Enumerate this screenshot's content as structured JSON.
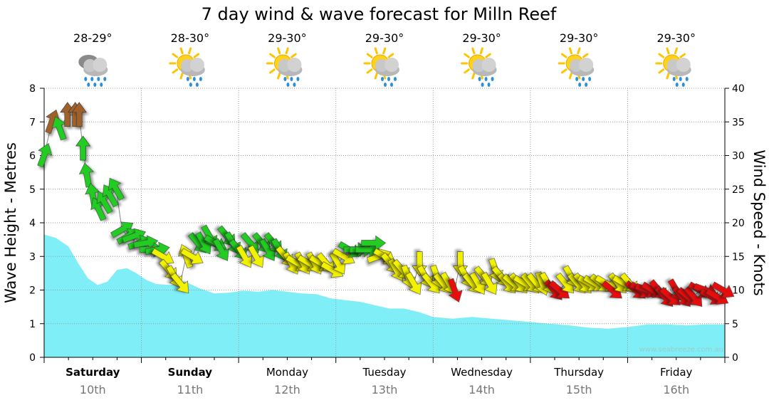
{
  "chart_data": {
    "type": "area",
    "title": "7 day wind & wave forecast for Milln Reef",
    "y_left_label": "Wave Height - Metres",
    "y_right_label": "Wind Speed - Knots",
    "y_left_range": [
      0,
      8
    ],
    "y_left_ticks": [
      "0",
      "1",
      "2",
      "3",
      "4",
      "5",
      "6",
      "7",
      "8"
    ],
    "y_right_range": [
      0,
      40
    ],
    "y_right_ticks": [
      "0",
      "5",
      "10",
      "15",
      "20",
      "25",
      "30",
      "35",
      "40"
    ],
    "x_range_days": [
      0,
      7
    ],
    "days": [
      {
        "name": "Saturday",
        "date": "10th",
        "bold": true,
        "temp": "28-29°",
        "weather": "rain"
      },
      {
        "name": "Sunday",
        "date": "11th",
        "bold": true,
        "temp": "28-30°",
        "weather": "sun-rain"
      },
      {
        "name": "Monday",
        "date": "12th",
        "bold": false,
        "temp": "29-30°",
        "weather": "sun-rain"
      },
      {
        "name": "Tuesday",
        "date": "13th",
        "bold": false,
        "temp": "29-30°",
        "weather": "sun-rain"
      },
      {
        "name": "Wednesday",
        "date": "14th",
        "bold": false,
        "temp": "29-30°",
        "weather": "sun-rain"
      },
      {
        "name": "Thursday",
        "date": "15th",
        "bold": false,
        "temp": "29-30°",
        "weather": "sun-rain"
      },
      {
        "name": "Friday",
        "date": "16th",
        "bold": false,
        "temp": "29-30°",
        "weather": "sun-rain"
      }
    ],
    "wave_height": {
      "x": [
        0,
        0.12,
        0.25,
        0.35,
        0.45,
        0.55,
        0.65,
        0.75,
        0.85,
        0.95,
        1.05,
        1.15,
        1.3,
        1.45,
        1.6,
        1.75,
        1.9,
        2.05,
        2.2,
        2.35,
        2.5,
        2.65,
        2.8,
        2.95,
        3.1,
        3.25,
        3.4,
        3.55,
        3.7,
        3.85,
        4.0,
        4.2,
        4.4,
        4.6,
        4.8,
        5.0,
        5.2,
        5.4,
        5.6,
        5.8,
        6.0,
        6.2,
        6.4,
        6.6,
        6.8,
        7.0
      ],
      "y": [
        3.65,
        3.55,
        3.3,
        2.8,
        2.35,
        2.15,
        2.25,
        2.6,
        2.65,
        2.5,
        2.3,
        2.18,
        2.15,
        2.25,
        2.05,
        1.9,
        1.92,
        1.98,
        1.95,
        2.0,
        1.95,
        1.9,
        1.88,
        1.75,
        1.7,
        1.65,
        1.55,
        1.45,
        1.45,
        1.35,
        1.2,
        1.15,
        1.2,
        1.15,
        1.1,
        1.05,
        1.0,
        0.95,
        0.88,
        0.85,
        0.9,
        0.98,
        0.98,
        0.95,
        0.98,
        0.98
      ]
    },
    "wind_speed": {
      "x": [
        0.0,
        0.08,
        0.16,
        0.24,
        0.32,
        0.36,
        0.4,
        0.44,
        0.5,
        0.56,
        0.62,
        0.68,
        0.74,
        0.8,
        0.86,
        0.92,
        0.98,
        1.04,
        1.1,
        1.16,
        1.22,
        1.28,
        1.34,
        1.4,
        1.46,
        1.52,
        1.58,
        1.64,
        1.7,
        1.76,
        1.82,
        1.88,
        1.94,
        2.0,
        2.06,
        2.12,
        2.18,
        2.24,
        2.3,
        2.36,
        2.42,
        2.48,
        2.54,
        2.6,
        2.66,
        2.72,
        2.78,
        2.84,
        2.9,
        2.96,
        3.02,
        3.08,
        3.14,
        3.2,
        3.26,
        3.32,
        3.38,
        3.44,
        3.5,
        3.56,
        3.62,
        3.68,
        3.74,
        3.8,
        3.86,
        3.92,
        3.98,
        4.04,
        4.1,
        4.16,
        4.22,
        4.28,
        4.34,
        4.4,
        4.46,
        4.52,
        4.58,
        4.64,
        4.7,
        4.76,
        4.82,
        4.88,
        4.94,
        5.0,
        5.06,
        5.12,
        5.18,
        5.24,
        5.3,
        5.36,
        5.42,
        5.48,
        5.54,
        5.6,
        5.66,
        5.72,
        5.78,
        5.84,
        5.9,
        5.96,
        6.02,
        6.08,
        6.14,
        6.2,
        6.26,
        6.32,
        6.38,
        6.44,
        6.5,
        6.56,
        6.62,
        6.68,
        6.74,
        6.8,
        6.86,
        6.92,
        6.98
      ],
      "y": [
        30,
        35,
        34,
        36,
        36,
        36,
        31,
        27,
        24,
        22,
        23,
        24,
        25,
        19,
        18,
        18,
        17,
        17,
        16,
        16,
        15,
        13,
        12,
        11,
        15,
        15,
        17,
        17,
        18,
        17,
        16,
        18,
        17,
        16,
        15,
        17,
        15,
        17,
        16,
        17,
        16,
        15,
        14,
        14,
        14,
        14,
        14,
        14,
        14,
        13,
        14,
        15,
        16,
        16,
        16,
        16,
        17,
        15,
        15,
        14,
        13,
        13,
        12,
        11,
        14,
        12,
        11,
        12,
        11,
        11,
        10,
        14,
        12,
        11,
        11,
        12,
        11,
        13,
        12,
        11,
        11,
        11,
        11,
        11,
        11,
        11,
        11,
        10,
        10,
        11,
        12,
        11,
        11,
        11,
        11,
        11,
        11,
        10,
        11,
        11,
        11,
        10,
        10,
        10,
        10,
        10,
        9,
        9,
        10,
        9,
        9,
        9,
        10,
        10,
        9,
        9,
        10
      ],
      "direction_from_deg": [
        200,
        200,
        160,
        180,
        180,
        180,
        180,
        170,
        170,
        155,
        150,
        150,
        150,
        240,
        240,
        250,
        250,
        260,
        270,
        260,
        300,
        320,
        330,
        320,
        160,
        300,
        320,
        330,
        330,
        300,
        330,
        320,
        330,
        320,
        330,
        320,
        330,
        320,
        330,
        320,
        330,
        320,
        330,
        300,
        330,
        300,
        330,
        300,
        320,
        300,
        330,
        300,
        300,
        270,
        270,
        270,
        270,
        250,
        300,
        320,
        330,
        320,
        340,
        330,
        0,
        330,
        320,
        340,
        320,
        330,
        340,
        0,
        330,
        320,
        330,
        320,
        330,
        340,
        320,
        320,
        310,
        320,
        300,
        320,
        320,
        340,
        330,
        320,
        310,
        320,
        330,
        320,
        320,
        300,
        300,
        310,
        300,
        310,
        320,
        300,
        320,
        310,
        300,
        290,
        300,
        320,
        320,
        310,
        330,
        320,
        310,
        320,
        300,
        290,
        300,
        300,
        300
      ],
      "colors": {
        "brown": "#a0602a",
        "green": "#22cc22",
        "yellow": "#f2f200",
        "red": "#e81010"
      }
    },
    "watermark": "www.seabreeze.com.au"
  }
}
